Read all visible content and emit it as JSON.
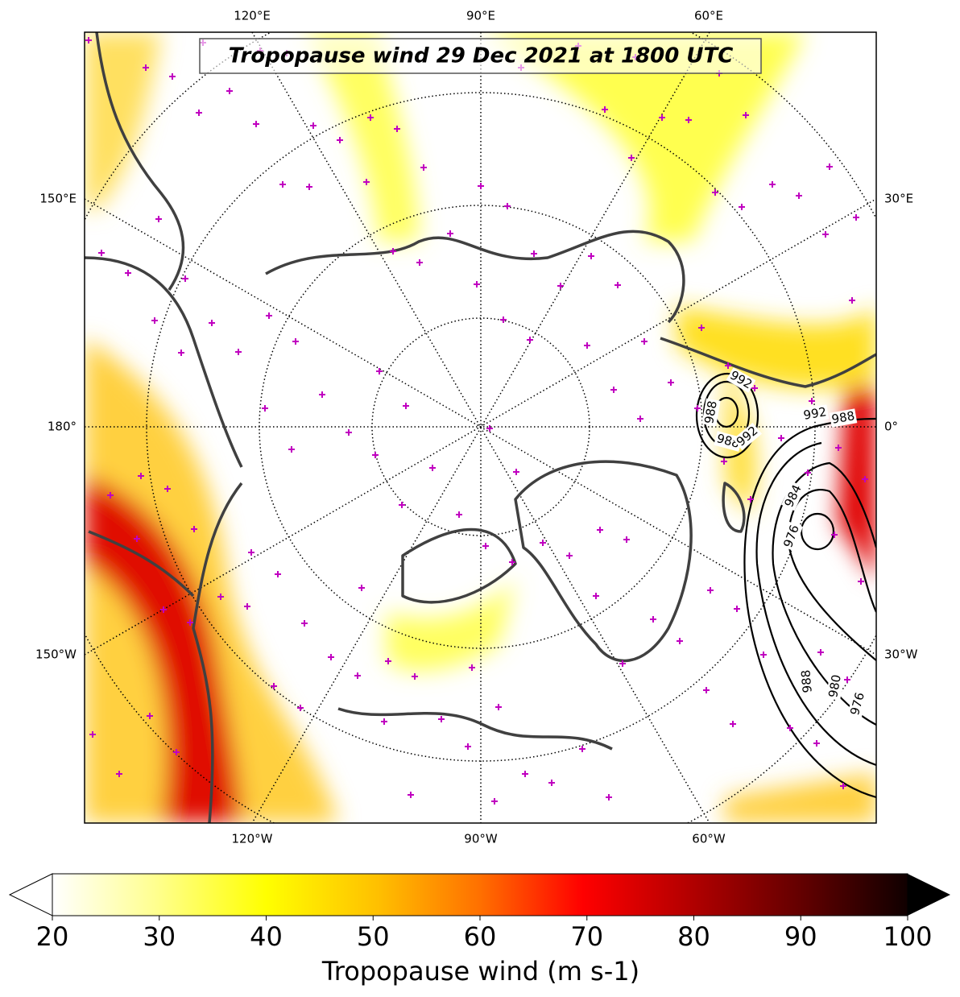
{
  "map": {
    "title": "Tropopause wind 29 Dec 2021 at 1800 UTC",
    "lon_labels": {
      "top": [
        "120°E",
        "90°E",
        "60°E"
      ],
      "bottom": [
        "120°W",
        "90°W",
        "60°W"
      ],
      "left": [
        "150°E",
        "180°",
        "150°W"
      ],
      "right": [
        "30°E",
        "0°",
        "30°W"
      ]
    },
    "contour_labels": [
      992,
      988,
      988,
      992,
      992,
      988,
      984,
      976,
      988,
      980,
      976
    ]
  },
  "colorbar": {
    "label": "Tropopause wind (m s-1)",
    "range": [
      20,
      100
    ],
    "ticks": [
      20,
      30,
      40,
      50,
      60,
      70,
      80,
      90,
      100
    ]
  }
}
